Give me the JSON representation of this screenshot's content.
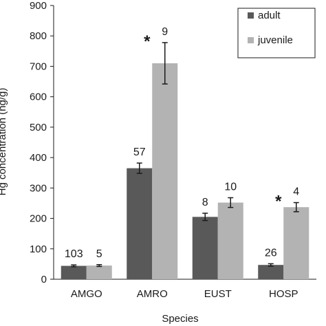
{
  "chart_data": {
    "type": "bar",
    "xlabel": "Species",
    "ylabel": "Hg concentration (ng/g)",
    "ylim": [
      0,
      900
    ],
    "yticks": [
      0,
      100,
      200,
      300,
      400,
      500,
      600,
      700,
      800,
      900
    ],
    "grid": false,
    "legend_position": "top-right",
    "categories": [
      "AMGO",
      "AMRO",
      "EUST",
      "HOSP"
    ],
    "series": [
      {
        "name": "adult",
        "color": "#595959",
        "values": [
          44,
          365,
          205,
          47
        ],
        "errors": [
          3,
          17,
          12,
          4
        ],
        "n_labels": [
          "103",
          "57",
          "8",
          "26"
        ],
        "significance": [
          "",
          "",
          "",
          ""
        ]
      },
      {
        "name": "juvenile",
        "color": "#b3b3b3",
        "values": [
          45,
          710,
          252,
          237
        ],
        "errors": [
          3,
          68,
          16,
          15
        ],
        "n_labels": [
          "5",
          "9",
          "10",
          "4"
        ],
        "significance": [
          "",
          "*",
          "",
          "*"
        ]
      }
    ]
  }
}
